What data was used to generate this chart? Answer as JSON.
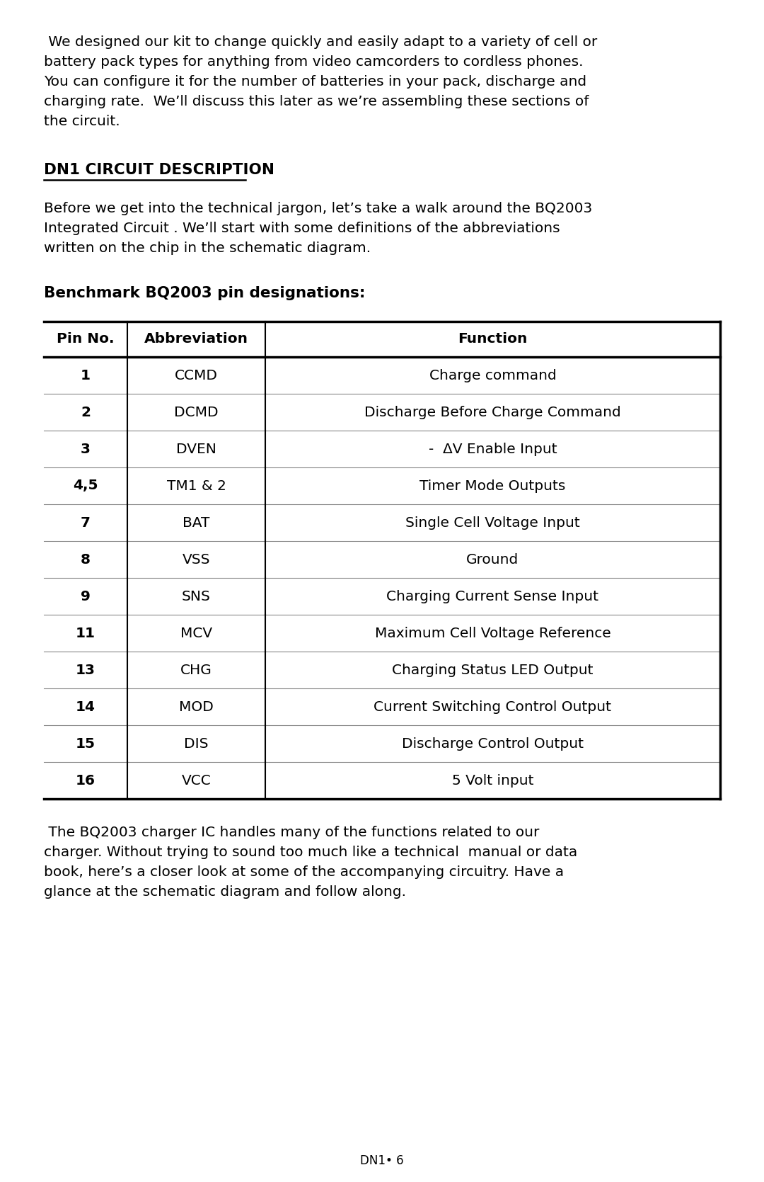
{
  "bg_color": "#ffffff",
  "text_color": "#000000",
  "paragraph1_lines": [
    " We designed our kit to change quickly and easily adapt to a variety of cell or",
    "battery pack types for anything from video camcorders to cordless phones.",
    "You can configure it for the number of batteries in your pack, discharge and",
    "charging rate.  We’ll discuss this later as we’re assembling these sections of",
    "the circuit."
  ],
  "section_heading": "DN1 CIRCUIT DESCRIPTION",
  "paragraph2_lines": [
    "Before we get into the technical jargon, let’s take a walk around the BQ2003",
    "Integrated Circuit . We’ll start with some definitions of the abbreviations",
    "written on the chip in the schematic diagram."
  ],
  "table_heading": "Benchmark BQ2003 pin designations:",
  "table_headers": [
    "Pin No.",
    "Abbreviation",
    "Function"
  ],
  "table_rows": [
    [
      "1",
      "CCMD",
      "Charge command"
    ],
    [
      "2",
      "DCMD",
      "Discharge Before Charge Command"
    ],
    [
      "3",
      "DVEN",
      "-  ΔV Enable Input"
    ],
    [
      "4,5",
      "TM1 & 2",
      "Timer Mode Outputs"
    ],
    [
      "7",
      "BAT",
      "Single Cell Voltage Input"
    ],
    [
      "8",
      "VSS",
      "Ground"
    ],
    [
      "9",
      "SNS",
      "Charging Current Sense Input"
    ],
    [
      "11",
      "MCV",
      "Maximum Cell Voltage Reference"
    ],
    [
      "13",
      "CHG",
      "Charging Status LED Output"
    ],
    [
      "14",
      "MOD",
      "Current Switching Control Output"
    ],
    [
      "15",
      "DIS",
      "Discharge Control Output"
    ],
    [
      "16",
      "VCC",
      "5 Volt input"
    ]
  ],
  "paragraph3_lines": [
    " The BQ2003 charger IC handles many of the functions related to our",
    "charger. Without trying to sound too much like a technical  manual or data",
    "book, here’s a closer look at some of the accompanying circuitry. Have a",
    "glance at the schematic diagram and follow along."
  ],
  "footer": "DN1• 6"
}
